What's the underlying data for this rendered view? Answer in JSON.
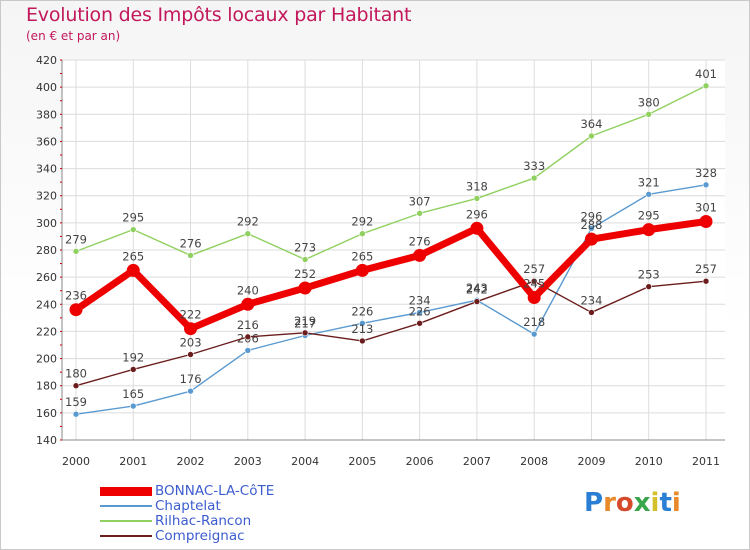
{
  "header": {
    "title": "Evolution des Impôts locaux par Habitant",
    "subtitle": "(en € et par an)"
  },
  "logo": {
    "text": "Proxiti"
  },
  "chart_data": {
    "type": "line",
    "title": "Evolution des Impôts locaux par Habitant",
    "subtitle": "(en € et par an)",
    "xlabel": "",
    "ylabel": "",
    "x": [
      "2000",
      "2001",
      "2002",
      "2003",
      "2004",
      "2005",
      "2006",
      "2007",
      "2008",
      "2009",
      "2010",
      "2011"
    ],
    "ylim": [
      140,
      420
    ],
    "yticks": [
      140,
      160,
      180,
      200,
      220,
      240,
      260,
      280,
      300,
      320,
      340,
      360,
      380,
      400,
      420
    ],
    "grid": true,
    "legend_position": "bottom-left",
    "series": [
      {
        "name": "Rilhac-Rancon",
        "color": "#90d060",
        "values": [
          279,
          295,
          276,
          292,
          273,
          292,
          307,
          318,
          333,
          364,
          380,
          401
        ]
      },
      {
        "name": "Chaptelat",
        "color": "#5a9ad0",
        "values": [
          159,
          165,
          176,
          206,
          217,
          226,
          234,
          243,
          218,
          296,
          321,
          328
        ]
      },
      {
        "name": "Compreignac",
        "color": "#6b1d1d",
        "values": [
          180,
          192,
          203,
          216,
          219,
          213,
          226,
          242,
          257,
          234,
          253,
          257
        ]
      },
      {
        "name": "BONNAC-LA-CôTE",
        "color": "#ee0000",
        "values": [
          236,
          265,
          222,
          240,
          252,
          265,
          276,
          296,
          245,
          288,
          295,
          301
        ]
      }
    ]
  },
  "legend": {
    "items": [
      {
        "label": "BONNAC-LA-CôTE",
        "color": "#ee0000"
      },
      {
        "label": "Chaptelat",
        "color": "#5a9ad0"
      },
      {
        "label": "Rilhac-Rancon",
        "color": "#90d060"
      },
      {
        "label": "Compreignac",
        "color": "#6b1d1d"
      }
    ]
  }
}
